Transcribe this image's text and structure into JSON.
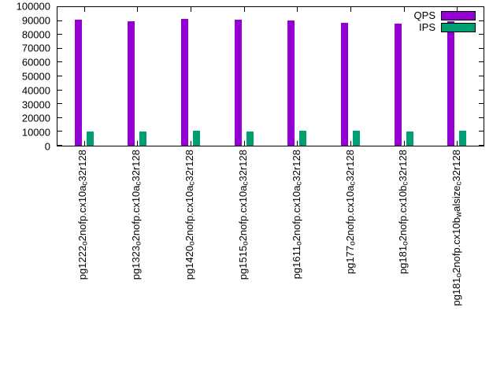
{
  "chart_data": {
    "type": "bar",
    "title": "",
    "xlabel": "",
    "ylabel": "",
    "ylim": [
      0,
      100000
    ],
    "yticks": [
      0,
      10000,
      20000,
      30000,
      40000,
      50000,
      60000,
      70000,
      80000,
      90000,
      100000
    ],
    "grid": false,
    "legend_position": "top-right",
    "categories": [
      "pg1222_o2nofp.cx10a_c32r128",
      "pg1323_o2nofp.cx10a_c32r128",
      "pg1420_o2nofp.cx10a_c32r128",
      "pg1515_o2nofp.cx10a_c32r128",
      "pg1611_o2nofp.cx10a_c32r128",
      "pg177_o2nofp.cx10a_c32r128",
      "pg181_o2nofp.cx10b_c32r128",
      "pg181_o2nofp.cx10b_walsize_c32r128"
    ],
    "series": [
      {
        "name": "QPS",
        "color": "#9400d3",
        "values": [
          91000,
          90000,
          91500,
          91000,
          90500,
          88500,
          88000,
          89500
        ]
      },
      {
        "name": "IPS",
        "color": "#009e73",
        "values": [
          10500,
          10500,
          11000,
          10500,
          11000,
          11000,
          10500,
          11000
        ]
      }
    ]
  }
}
